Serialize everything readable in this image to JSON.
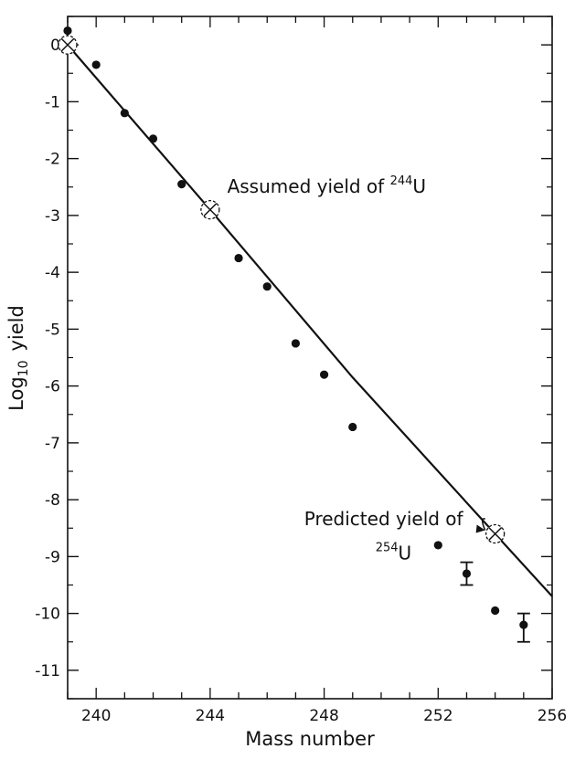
{
  "chart_data": {
    "type": "scatter",
    "xlabel": "Mass number",
    "ylabel": {
      "prefix": "Log",
      "subscript": "10",
      "suffix": "yield"
    },
    "xlim": [
      239,
      256
    ],
    "ylim": [
      -11.5,
      0.5
    ],
    "x_ticks": [
      240,
      244,
      248,
      252,
      256
    ],
    "y_ticks": [
      0,
      -1,
      -2,
      -3,
      -4,
      -5,
      -6,
      -7,
      -8,
      -9,
      -10,
      -11
    ],
    "grid": false,
    "series": [
      {
        "kind": "points",
        "points": [
          {
            "x": 239,
            "y": 0.25
          },
          {
            "x": 240,
            "y": -0.35
          },
          {
            "x": 241,
            "y": -1.2
          },
          {
            "x": 242,
            "y": -1.65
          },
          {
            "x": 243,
            "y": -2.45
          },
          {
            "x": 245,
            "y": -3.75
          },
          {
            "x": 246,
            "y": -4.25
          },
          {
            "x": 247,
            "y": -5.25
          },
          {
            "x": 248,
            "y": -5.8
          },
          {
            "x": 249,
            "y": -6.72
          },
          {
            "x": 252,
            "y": -8.8
          },
          {
            "x": 253,
            "y": -9.3,
            "err_low": -9.5,
            "err_high": -9.1
          },
          {
            "x": 254,
            "y": -9.95
          },
          {
            "x": 255,
            "y": -10.2,
            "err_low": -10.5,
            "err_high": -10.0
          }
        ]
      },
      {
        "kind": "line",
        "points": [
          {
            "x": 239,
            "y": 0.0
          },
          {
            "x": 244,
            "y": -2.9
          },
          {
            "x": 249,
            "y": -5.85
          },
          {
            "x": 254,
            "y": -8.6
          },
          {
            "x": 256,
            "y": -9.7
          }
        ]
      },
      {
        "kind": "reference-markers",
        "points": [
          {
            "x": 239,
            "y": 0.0
          },
          {
            "x": 244,
            "y": -2.9
          },
          {
            "x": 254,
            "y": -8.6
          }
        ]
      }
    ],
    "annotations": [
      {
        "id": "assumed",
        "text": "Assumed yield of ",
        "sup": "244",
        "tail": "U",
        "x": 244.6,
        "y": -2.6
      },
      {
        "id": "predicted",
        "text": "Predicted yield of",
        "sup": "254",
        "tail": "U",
        "x": 247.3,
        "y": -8.45,
        "x2": 249.8,
        "y2": -9.05
      }
    ]
  }
}
